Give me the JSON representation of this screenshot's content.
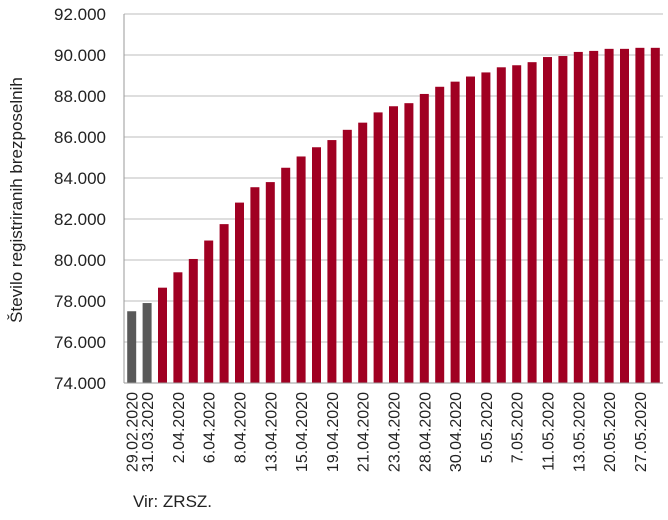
{
  "chart_data": {
    "type": "bar",
    "ylabel": "Število registriranih brezposelnih",
    "xlabel": "",
    "ylim": [
      74000,
      92000
    ],
    "yticks": [
      74000,
      76000,
      78000,
      80000,
      82000,
      84000,
      86000,
      88000,
      90000,
      92000
    ],
    "ytick_labels": [
      "74.000",
      "76.000",
      "78.000",
      "80.000",
      "82.000",
      "84.000",
      "86.000",
      "88.000",
      "90.000",
      "92.000"
    ],
    "grid": true,
    "values": [
      77500,
      77900,
      78650,
      79400,
      80050,
      80950,
      81750,
      82800,
      83550,
      83800,
      84500,
      85050,
      85500,
      85850,
      86350,
      86700,
      87200,
      87500,
      87650,
      88100,
      88450,
      88700,
      88950,
      89150,
      89400,
      89500,
      89650,
      89900,
      89950,
      90150,
      90200,
      90300,
      90300,
      90350,
      90350
    ],
    "bar_colors": [
      "#595959",
      "#595959",
      "#a00022",
      "#a00022",
      "#a00022",
      "#a00022",
      "#a00022",
      "#a00022",
      "#a00022",
      "#a00022",
      "#a00022",
      "#a00022",
      "#a00022",
      "#a00022",
      "#a00022",
      "#a00022",
      "#a00022",
      "#a00022",
      "#a00022",
      "#a00022",
      "#a00022",
      "#a00022",
      "#a00022",
      "#a00022",
      "#a00022",
      "#a00022",
      "#a00022",
      "#a00022",
      "#a00022",
      "#a00022",
      "#a00022",
      "#a00022",
      "#a00022",
      "#a00022",
      "#a00022"
    ],
    "category_labels": [
      {
        "bar": 0,
        "label": "29.02.2020"
      },
      {
        "bar": 1,
        "label": "31.03.2020"
      },
      {
        "bar": 3,
        "label": "2.04.2020"
      },
      {
        "bar": 5,
        "label": "6.04.2020"
      },
      {
        "bar": 7,
        "label": "8.04.2020"
      },
      {
        "bar": 9,
        "label": "13.04.2020"
      },
      {
        "bar": 11,
        "label": "15.04.2020"
      },
      {
        "bar": 13,
        "label": "19.04.2020"
      },
      {
        "bar": 15,
        "label": "21.04.2020"
      },
      {
        "bar": 17,
        "label": "23.04.2020"
      },
      {
        "bar": 19,
        "label": "28.04.2020"
      },
      {
        "bar": 21,
        "label": "30.04.2020"
      },
      {
        "bar": 23,
        "label": "5.05.2020"
      },
      {
        "bar": 25,
        "label": "7.05.2020"
      },
      {
        "bar": 27,
        "label": "11.05.2020"
      },
      {
        "bar": 29,
        "label": "13.05.2020"
      },
      {
        "bar": 31,
        "label": "20.05.2020"
      },
      {
        "bar": 33,
        "label": "27.05.2020"
      }
    ],
    "colors": {
      "axis": "#9a9a9a",
      "grid": "#bdbdbd",
      "pre": "#595959",
      "post": "#a00022"
    }
  },
  "footer": {
    "source": "Vir: ZRSZ."
  }
}
